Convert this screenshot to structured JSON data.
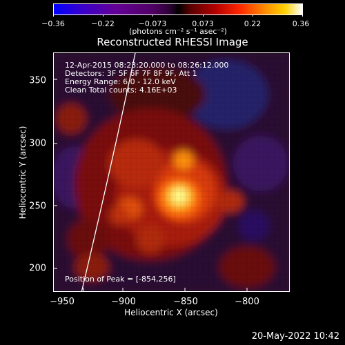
{
  "colorbar": {
    "ticks": [
      "−0.36",
      "−0.22",
      "−0.073",
      "0.073",
      "0.22",
      "0.36"
    ],
    "units": "(photons cm⁻² s⁻¹ asec⁻²)"
  },
  "title": "Reconstructed RHESSI Image",
  "annotations": {
    "time": "12-Apr-2015 08:23:20.000 to 08:26:12.000",
    "detectors": "Detectors: 3F 5F 6F 7F 8F 9F, Att 1",
    "energy": "Energy Range: 6.0 - 12.0 keV",
    "method": "Clean    Total counts: 4.16E+03",
    "peak": "Position of Peak = [-854,256]"
  },
  "axes": {
    "xlabel": "Heliocentric X (arcsec)",
    "ylabel": "Heliocentric Y (arcsec)",
    "xticks": [
      "−950",
      "−900",
      "−850",
      "−800"
    ],
    "yticks": [
      "350",
      "300",
      "250",
      "200"
    ]
  },
  "datestamp": "20-May-2022 10:42"
}
